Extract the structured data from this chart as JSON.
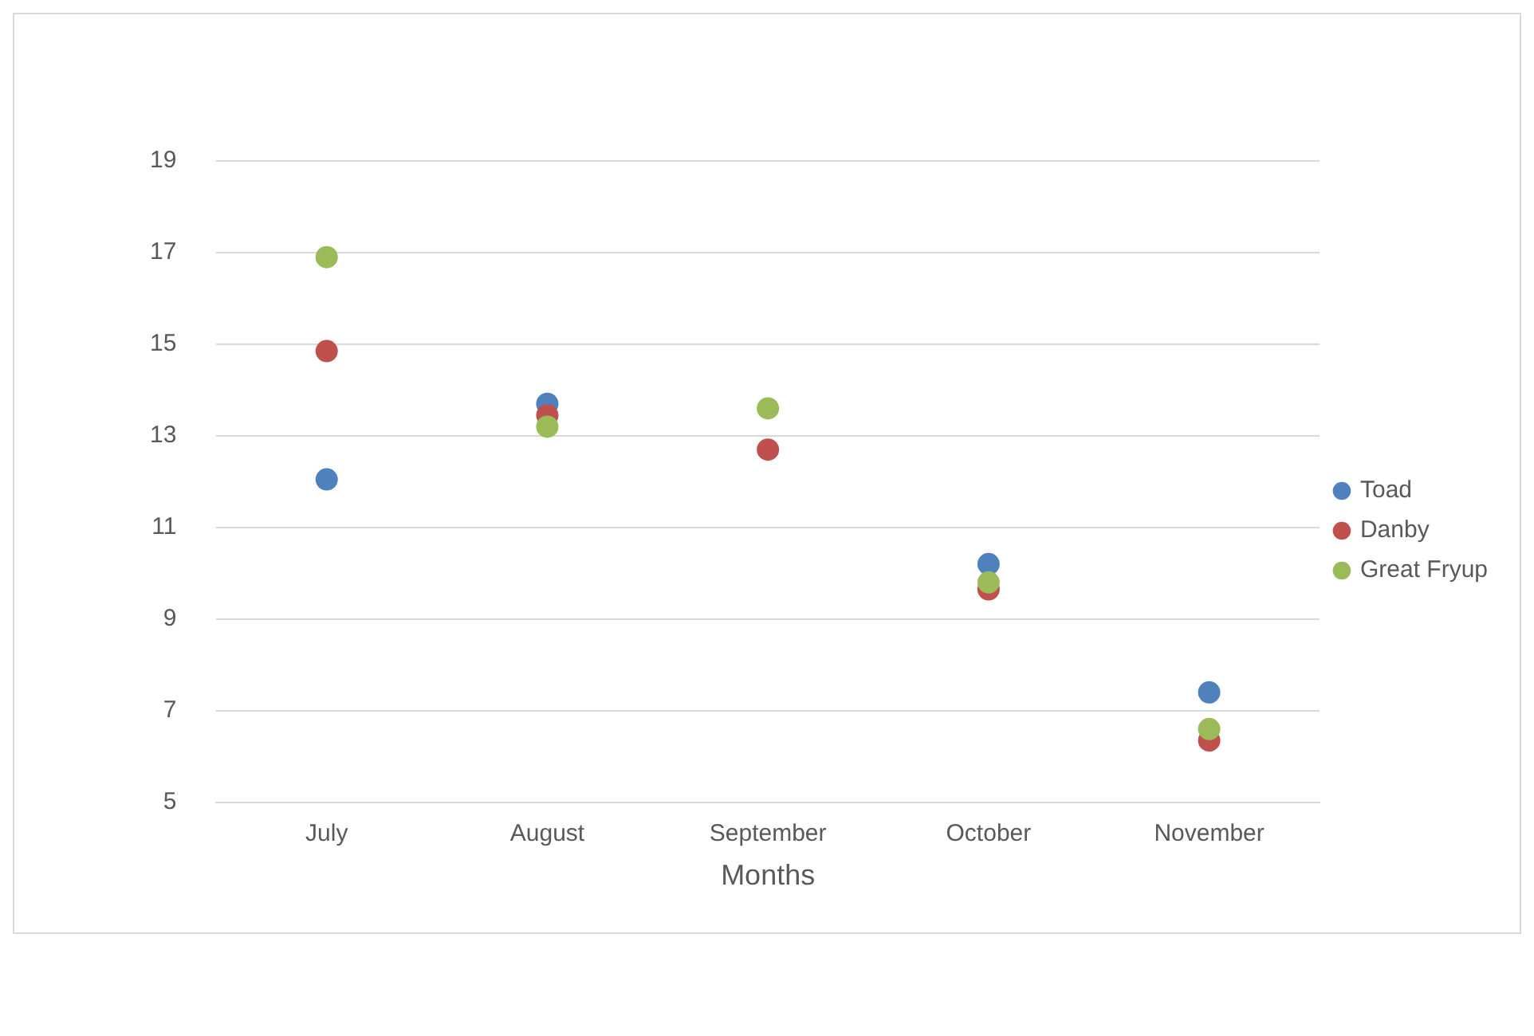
{
  "chart_data": {
    "type": "scatter",
    "xlabel": "Months",
    "categories": [
      "July",
      "August",
      "September",
      "October",
      "November"
    ],
    "series": [
      {
        "name": "Toad",
        "color": "#4f81bd",
        "values": [
          12.05,
          13.7,
          null,
          10.2,
          7.4
        ]
      },
      {
        "name": "Danby",
        "color": "#c0504d",
        "values": [
          14.85,
          13.45,
          12.7,
          9.65,
          6.35
        ]
      },
      {
        "name": "Great Fryup",
        "color": "#9bbb59",
        "values": [
          16.9,
          13.2,
          13.6,
          9.8,
          6.6
        ]
      }
    ],
    "ylim": [
      5,
      19
    ],
    "yticks": [
      5,
      7,
      9,
      11,
      13,
      15,
      17,
      19
    ],
    "grid": "y",
    "legend": "right",
    "marker": "circle"
  }
}
